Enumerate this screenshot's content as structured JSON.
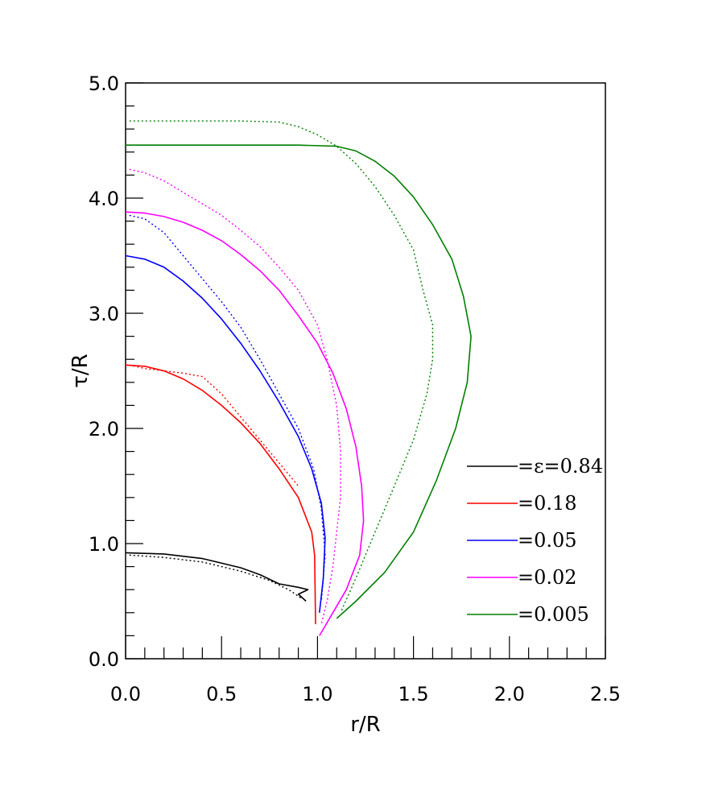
{
  "chart_data": {
    "type": "line",
    "title": "",
    "xlabel": "r/R",
    "ylabel": "τ/R",
    "xlim": [
      0.0,
      2.5
    ],
    "ylim": [
      0.0,
      5.0
    ],
    "x_ticks": [
      {
        "value": 0.0,
        "label": "0.0"
      },
      {
        "value": 0.5,
        "label": "0.5"
      },
      {
        "value": 1.0,
        "label": "1.0"
      },
      {
        "value": 1.5,
        "label": "1.5"
      },
      {
        "value": 2.0,
        "label": "2.0"
      },
      {
        "value": 2.5,
        "label": "2.5"
      }
    ],
    "y_ticks": [
      {
        "value": 0.0,
        "label": "0.0"
      },
      {
        "value": 1.0,
        "label": "1.0"
      },
      {
        "value": 2.0,
        "label": "2.0"
      },
      {
        "value": 3.0,
        "label": "3.0"
      },
      {
        "value": 4.0,
        "label": "4.0"
      },
      {
        "value": 5.0,
        "label": "5.0"
      }
    ],
    "grid": false,
    "legend_position": "bottom-right",
    "series": [
      {
        "name": "=ε=0.84",
        "color": "#000000",
        "style": "solid",
        "points": [
          [
            0.0,
            0.92
          ],
          [
            0.2,
            0.91
          ],
          [
            0.4,
            0.87
          ],
          [
            0.6,
            0.79
          ],
          [
            0.7,
            0.73
          ],
          [
            0.8,
            0.65
          ],
          [
            0.9,
            0.62
          ],
          [
            0.95,
            0.6
          ],
          [
            0.9,
            0.56
          ],
          [
            0.94,
            0.5
          ]
        ]
      },
      {
        "style": "dotted",
        "color": "#000000",
        "points": [
          [
            0.02,
            0.9
          ],
          [
            0.2,
            0.88
          ],
          [
            0.4,
            0.84
          ],
          [
            0.6,
            0.76
          ],
          [
            0.75,
            0.68
          ],
          [
            0.85,
            0.6
          ],
          [
            0.92,
            0.52
          ]
        ]
      },
      {
        "name": "=0.18",
        "color": "#ff0000",
        "style": "solid",
        "points": [
          [
            0.0,
            2.55
          ],
          [
            0.1,
            2.54
          ],
          [
            0.2,
            2.5
          ],
          [
            0.3,
            2.43
          ],
          [
            0.4,
            2.33
          ],
          [
            0.5,
            2.2
          ],
          [
            0.6,
            2.05
          ],
          [
            0.7,
            1.87
          ],
          [
            0.8,
            1.65
          ],
          [
            0.9,
            1.4
          ],
          [
            0.97,
            1.1
          ],
          [
            0.985,
            0.9
          ],
          [
            0.99,
            0.3
          ]
        ]
      },
      {
        "style": "dotted",
        "color": "#ff0000",
        "points": [
          [
            0.02,
            2.55
          ],
          [
            0.1,
            2.52
          ],
          [
            0.2,
            2.5
          ],
          [
            0.3,
            2.48
          ],
          [
            0.4,
            2.45
          ],
          [
            0.5,
            2.3
          ],
          [
            0.6,
            2.1
          ],
          [
            0.7,
            1.9
          ],
          [
            0.8,
            1.7
          ],
          [
            0.9,
            1.5
          ]
        ]
      },
      {
        "name": "=0.05",
        "color": "#0000ff",
        "style": "solid",
        "points": [
          [
            0.0,
            3.5
          ],
          [
            0.1,
            3.47
          ],
          [
            0.2,
            3.4
          ],
          [
            0.3,
            3.28
          ],
          [
            0.4,
            3.13
          ],
          [
            0.5,
            2.95
          ],
          [
            0.6,
            2.74
          ],
          [
            0.7,
            2.5
          ],
          [
            0.8,
            2.23
          ],
          [
            0.9,
            1.93
          ],
          [
            0.97,
            1.65
          ],
          [
            1.02,
            1.35
          ],
          [
            1.04,
            1.05
          ],
          [
            1.03,
            0.7
          ],
          [
            1.01,
            0.4
          ]
        ]
      },
      {
        "style": "dotted",
        "color": "#0000ff",
        "points": [
          [
            0.02,
            3.85
          ],
          [
            0.1,
            3.82
          ],
          [
            0.2,
            3.7
          ],
          [
            0.3,
            3.5
          ],
          [
            0.4,
            3.3
          ],
          [
            0.5,
            3.1
          ],
          [
            0.6,
            2.88
          ],
          [
            0.7,
            2.6
          ],
          [
            0.8,
            2.3
          ],
          [
            0.9,
            2.0
          ],
          [
            0.98,
            1.65
          ],
          [
            1.02,
            1.3
          ],
          [
            1.04,
            0.9
          ],
          [
            1.02,
            0.5
          ]
        ]
      },
      {
        "name": "=0.02",
        "color": "#ff00ff",
        "style": "solid",
        "points": [
          [
            0.0,
            3.88
          ],
          [
            0.1,
            3.87
          ],
          [
            0.2,
            3.84
          ],
          [
            0.3,
            3.79
          ],
          [
            0.4,
            3.72
          ],
          [
            0.5,
            3.63
          ],
          [
            0.6,
            3.51
          ],
          [
            0.7,
            3.37
          ],
          [
            0.8,
            3.2
          ],
          [
            0.9,
            2.98
          ],
          [
            1.0,
            2.74
          ],
          [
            1.08,
            2.48
          ],
          [
            1.15,
            2.17
          ],
          [
            1.2,
            1.84
          ],
          [
            1.23,
            1.5
          ],
          [
            1.24,
            1.2
          ],
          [
            1.22,
            0.9
          ],
          [
            1.15,
            0.6
          ],
          [
            1.08,
            0.4
          ],
          [
            1.01,
            0.2
          ]
        ]
      },
      {
        "style": "dotted",
        "color": "#ff00ff",
        "points": [
          [
            0.02,
            4.25
          ],
          [
            0.1,
            4.22
          ],
          [
            0.2,
            4.15
          ],
          [
            0.3,
            4.05
          ],
          [
            0.4,
            3.95
          ],
          [
            0.5,
            3.85
          ],
          [
            0.6,
            3.72
          ],
          [
            0.7,
            3.58
          ],
          [
            0.8,
            3.4
          ],
          [
            0.9,
            3.2
          ],
          [
            1.0,
            2.9
          ],
          [
            1.05,
            2.6
          ],
          [
            1.1,
            2.2
          ],
          [
            1.12,
            1.8
          ],
          [
            1.12,
            1.4
          ],
          [
            1.1,
            1.1
          ],
          [
            1.08,
            0.8
          ],
          [
            1.05,
            0.5
          ],
          [
            1.02,
            0.3
          ]
        ]
      },
      {
        "name": "=0.005",
        "color": "#008000",
        "style": "solid",
        "points": [
          [
            0.0,
            4.46
          ],
          [
            0.3,
            4.46
          ],
          [
            0.6,
            4.46
          ],
          [
            0.9,
            4.46
          ],
          [
            1.1,
            4.45
          ],
          [
            1.2,
            4.41
          ],
          [
            1.3,
            4.32
          ],
          [
            1.4,
            4.19
          ],
          [
            1.5,
            4.01
          ],
          [
            1.6,
            3.77
          ],
          [
            1.7,
            3.47
          ],
          [
            1.76,
            3.15
          ],
          [
            1.8,
            2.8
          ],
          [
            1.78,
            2.4
          ],
          [
            1.72,
            2.0
          ],
          [
            1.62,
            1.55
          ],
          [
            1.5,
            1.1
          ],
          [
            1.35,
            0.75
          ],
          [
            1.2,
            0.5
          ],
          [
            1.1,
            0.35
          ]
        ]
      },
      {
        "style": "dotted",
        "color": "#008000",
        "points": [
          [
            0.02,
            4.67
          ],
          [
            0.3,
            4.67
          ],
          [
            0.6,
            4.67
          ],
          [
            0.8,
            4.66
          ],
          [
            0.9,
            4.62
          ],
          [
            1.0,
            4.55
          ],
          [
            1.1,
            4.45
          ],
          [
            1.2,
            4.3
          ],
          [
            1.3,
            4.1
          ],
          [
            1.4,
            3.85
          ],
          [
            1.5,
            3.55
          ],
          [
            1.55,
            3.2
          ],
          [
            1.6,
            2.9
          ],
          [
            1.6,
            2.6
          ],
          [
            1.57,
            2.3
          ],
          [
            1.5,
            1.9
          ],
          [
            1.4,
            1.5
          ],
          [
            1.3,
            1.1
          ],
          [
            1.2,
            0.7
          ],
          [
            1.12,
            0.4
          ]
        ]
      }
    ]
  }
}
